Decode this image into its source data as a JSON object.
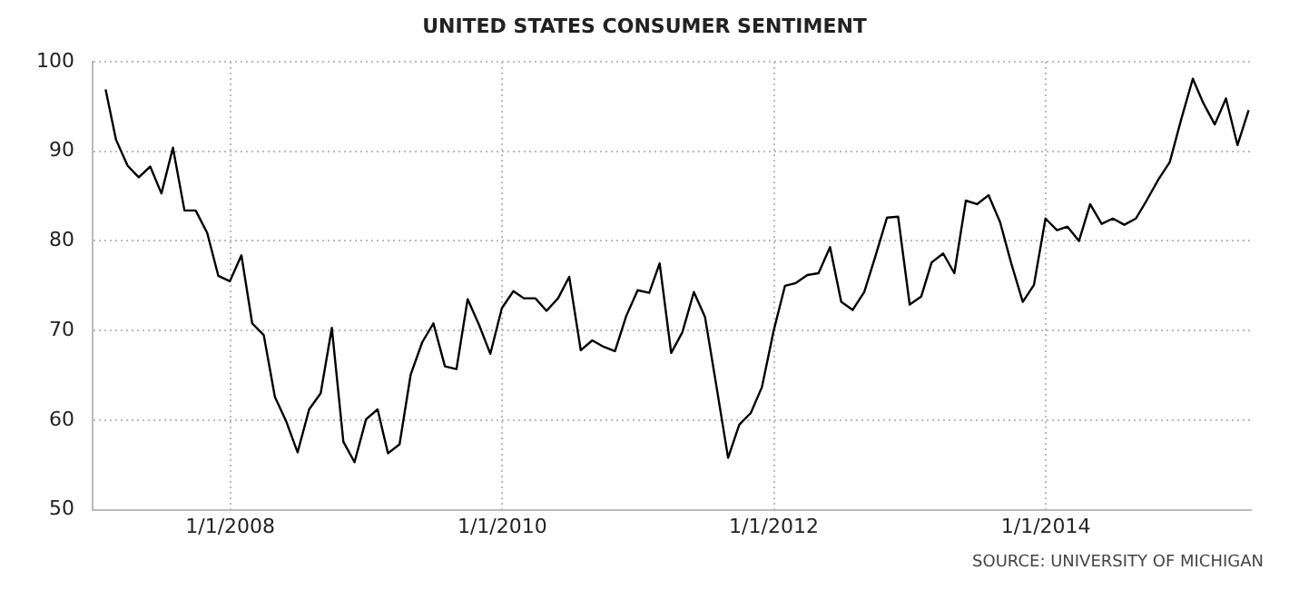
{
  "chart_data": {
    "type": "line",
    "title": "UNITED STATES CONSUMER SENTIMENT",
    "x": [
      "2007-01-31",
      "2007-02-28",
      "2007-03-31",
      "2007-04-30",
      "2007-05-31",
      "2007-06-30",
      "2007-07-31",
      "2007-08-31",
      "2007-09-30",
      "2007-10-31",
      "2007-11-30",
      "2007-12-31",
      "2008-01-31",
      "2008-02-29",
      "2008-03-31",
      "2008-04-30",
      "2008-05-31",
      "2008-06-30",
      "2008-07-31",
      "2008-08-31",
      "2008-09-30",
      "2008-10-31",
      "2008-11-30",
      "2008-12-31",
      "2009-01-31",
      "2009-02-28",
      "2009-03-31",
      "2009-04-30",
      "2009-05-31",
      "2009-06-30",
      "2009-07-31",
      "2009-08-31",
      "2009-09-30",
      "2009-10-31",
      "2009-11-30",
      "2009-12-31",
      "2010-01-31",
      "2010-02-28",
      "2010-03-31",
      "2010-04-30",
      "2010-05-31",
      "2010-06-30",
      "2010-07-31",
      "2010-08-31",
      "2010-09-30",
      "2010-10-31",
      "2010-11-30",
      "2010-12-31",
      "2011-01-31",
      "2011-02-28",
      "2011-03-31",
      "2011-04-30",
      "2011-05-31",
      "2011-06-30",
      "2011-07-31",
      "2011-08-31",
      "2011-09-30",
      "2011-10-31",
      "2011-11-30",
      "2011-12-31",
      "2012-01-31",
      "2012-02-29",
      "2012-03-31",
      "2012-04-30",
      "2012-05-31",
      "2012-06-30",
      "2012-07-31",
      "2012-08-31",
      "2012-09-30",
      "2012-10-31",
      "2012-11-30",
      "2012-12-31",
      "2013-01-31",
      "2013-02-28",
      "2013-03-31",
      "2013-04-30",
      "2013-05-31",
      "2013-06-30",
      "2013-07-31",
      "2013-08-31",
      "2013-09-30",
      "2013-10-31",
      "2013-11-30",
      "2013-12-31",
      "2014-01-31",
      "2014-02-28",
      "2014-03-31",
      "2014-04-30",
      "2014-05-31",
      "2014-06-30",
      "2014-07-31",
      "2014-08-31",
      "2014-09-30",
      "2014-10-31",
      "2014-11-30",
      "2014-12-31",
      "2015-01-31",
      "2015-02-28",
      "2015-03-31",
      "2015-04-30",
      "2015-05-31",
      "2015-06-30"
    ],
    "series": [
      {
        "color": "#000000",
        "values": [
          96.9,
          91.3,
          88.4,
          87.1,
          88.3,
          85.3,
          90.4,
          83.4,
          83.4,
          80.9,
          76.1,
          75.5,
          78.4,
          70.8,
          69.5,
          62.6,
          59.8,
          56.4,
          61.2,
          63.0,
          70.3,
          57.6,
          55.3,
          60.1,
          61.2,
          56.3,
          57.3,
          65.1,
          68.7,
          70.8,
          66.0,
          65.7,
          73.5,
          70.6,
          67.4,
          72.5,
          74.4,
          73.6,
          73.6,
          72.2,
          73.6,
          76.0,
          67.8,
          68.9,
          68.2,
          67.7,
          71.6,
          74.5,
          74.2,
          77.5,
          67.5,
          69.8,
          74.3,
          71.5,
          63.7,
          55.8,
          59.5,
          60.8,
          63.7,
          69.9,
          75.0,
          75.3,
          76.2,
          76.4,
          79.3,
          73.2,
          72.3,
          74.3,
          78.3,
          82.6,
          82.7,
          72.9,
          73.8,
          77.6,
          78.6,
          76.4,
          84.5,
          84.1,
          85.1,
          82.1,
          77.5,
          73.2,
          75.1,
          82.5,
          81.2,
          81.6,
          80.0,
          84.1,
          81.9,
          82.5,
          81.8,
          82.5,
          84.6,
          86.9,
          88.8,
          93.6,
          98.1,
          95.4,
          93.0,
          95.9,
          90.7,
          94.6
        ]
      }
    ],
    "xlim": [
      "2006-12-27",
      "2015-07-06"
    ],
    "xticks": [
      {
        "value": "2008-01-01",
        "label": "1/1/2008"
      },
      {
        "value": "2010-01-01",
        "label": "1/1/2010"
      },
      {
        "value": "2012-01-01",
        "label": "1/1/2012"
      },
      {
        "value": "2014-01-01",
        "label": "1/1/2014"
      }
    ],
    "ylim": [
      50,
      100
    ],
    "yticks": [
      50,
      60,
      70,
      80,
      90,
      100
    ],
    "grid": true,
    "legend": false,
    "marker": "none",
    "line_style": "solid",
    "annotations": [
      "SOURCE: UNIVERSITY OF MICHIGAN"
    ]
  }
}
